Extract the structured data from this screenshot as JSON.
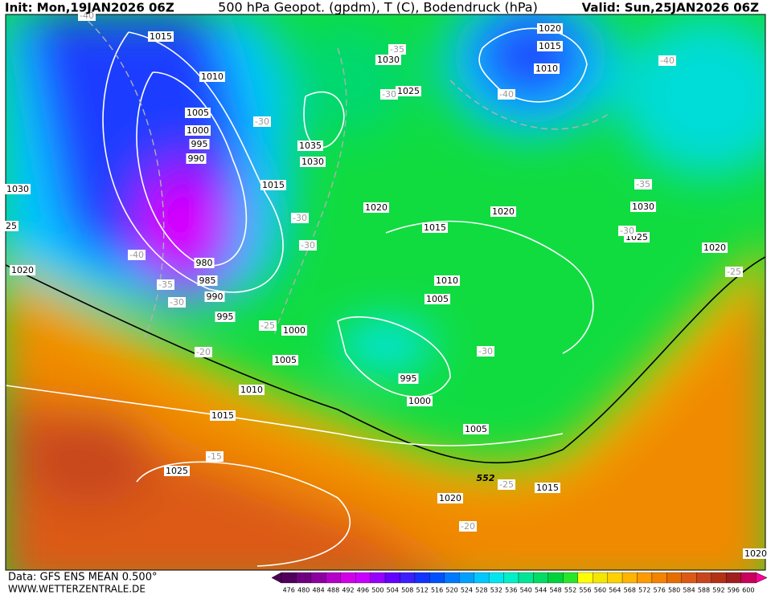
{
  "header": {
    "init": "Init: Mon,19JAN2026 06Z",
    "title": "500 hPa Geopot. (gpdm), T (C), Bodendruck (hPa)",
    "valid": "Valid: Sun,25JAN2026 06Z"
  },
  "footer": {
    "data": "Data: GFS ENS MEAN 0.500°",
    "site": "WWW.WETTERZENTRALE.DE"
  },
  "map": {
    "contour_label": "552",
    "pressure_labels": [
      "1015",
      "1010",
      "1005",
      "1000",
      "995",
      "990",
      "1030",
      "25",
      "1020",
      "980",
      "985",
      "990",
      "995",
      "1000",
      "1005",
      "1010",
      "1015",
      "1025",
      "1030",
      "1025",
      "1035",
      "1030",
      "1015",
      "1020",
      "1015",
      "1020",
      "1010",
      "1005",
      "995",
      "1000",
      "1005",
      "1020",
      "1015",
      "1020",
      "1015",
      "1010",
      "1030",
      "1025",
      "1020",
      "1020"
    ],
    "temperature_labels": [
      "-40",
      "-35",
      "-30",
      "-30",
      "-30",
      "-30",
      "-40",
      "-35",
      "-30",
      "-25",
      "-20",
      "-15",
      "-25",
      "-20",
      "-40",
      "-40",
      "-35",
      "-30",
      "-25",
      "-30"
    ]
  },
  "colorbar": {
    "ticks": [
      476,
      480,
      484,
      488,
      492,
      496,
      500,
      504,
      508,
      512,
      516,
      520,
      524,
      528,
      532,
      536,
      540,
      544,
      548,
      552,
      556,
      560,
      564,
      568,
      572,
      576,
      580,
      584,
      588,
      592,
      596,
      600
    ],
    "colors": [
      "#50005a",
      "#6e0080",
      "#8c00a0",
      "#b400c8",
      "#d200e6",
      "#c800ff",
      "#9600ff",
      "#6400ff",
      "#3c1eff",
      "#1432ff",
      "#0050ff",
      "#0078ff",
      "#00a0ff",
      "#00c8ff",
      "#00e6f0",
      "#00f0c8",
      "#00e696",
      "#00dc64",
      "#00d23c",
      "#28e628",
      "#ffff00",
      "#f5e600",
      "#ffd200",
      "#ffb400",
      "#ff9b00",
      "#f58200",
      "#e66e00",
      "#dc5a14",
      "#c8461e",
      "#b43214",
      "#a01e1e",
      "#c8005a"
    ]
  }
}
